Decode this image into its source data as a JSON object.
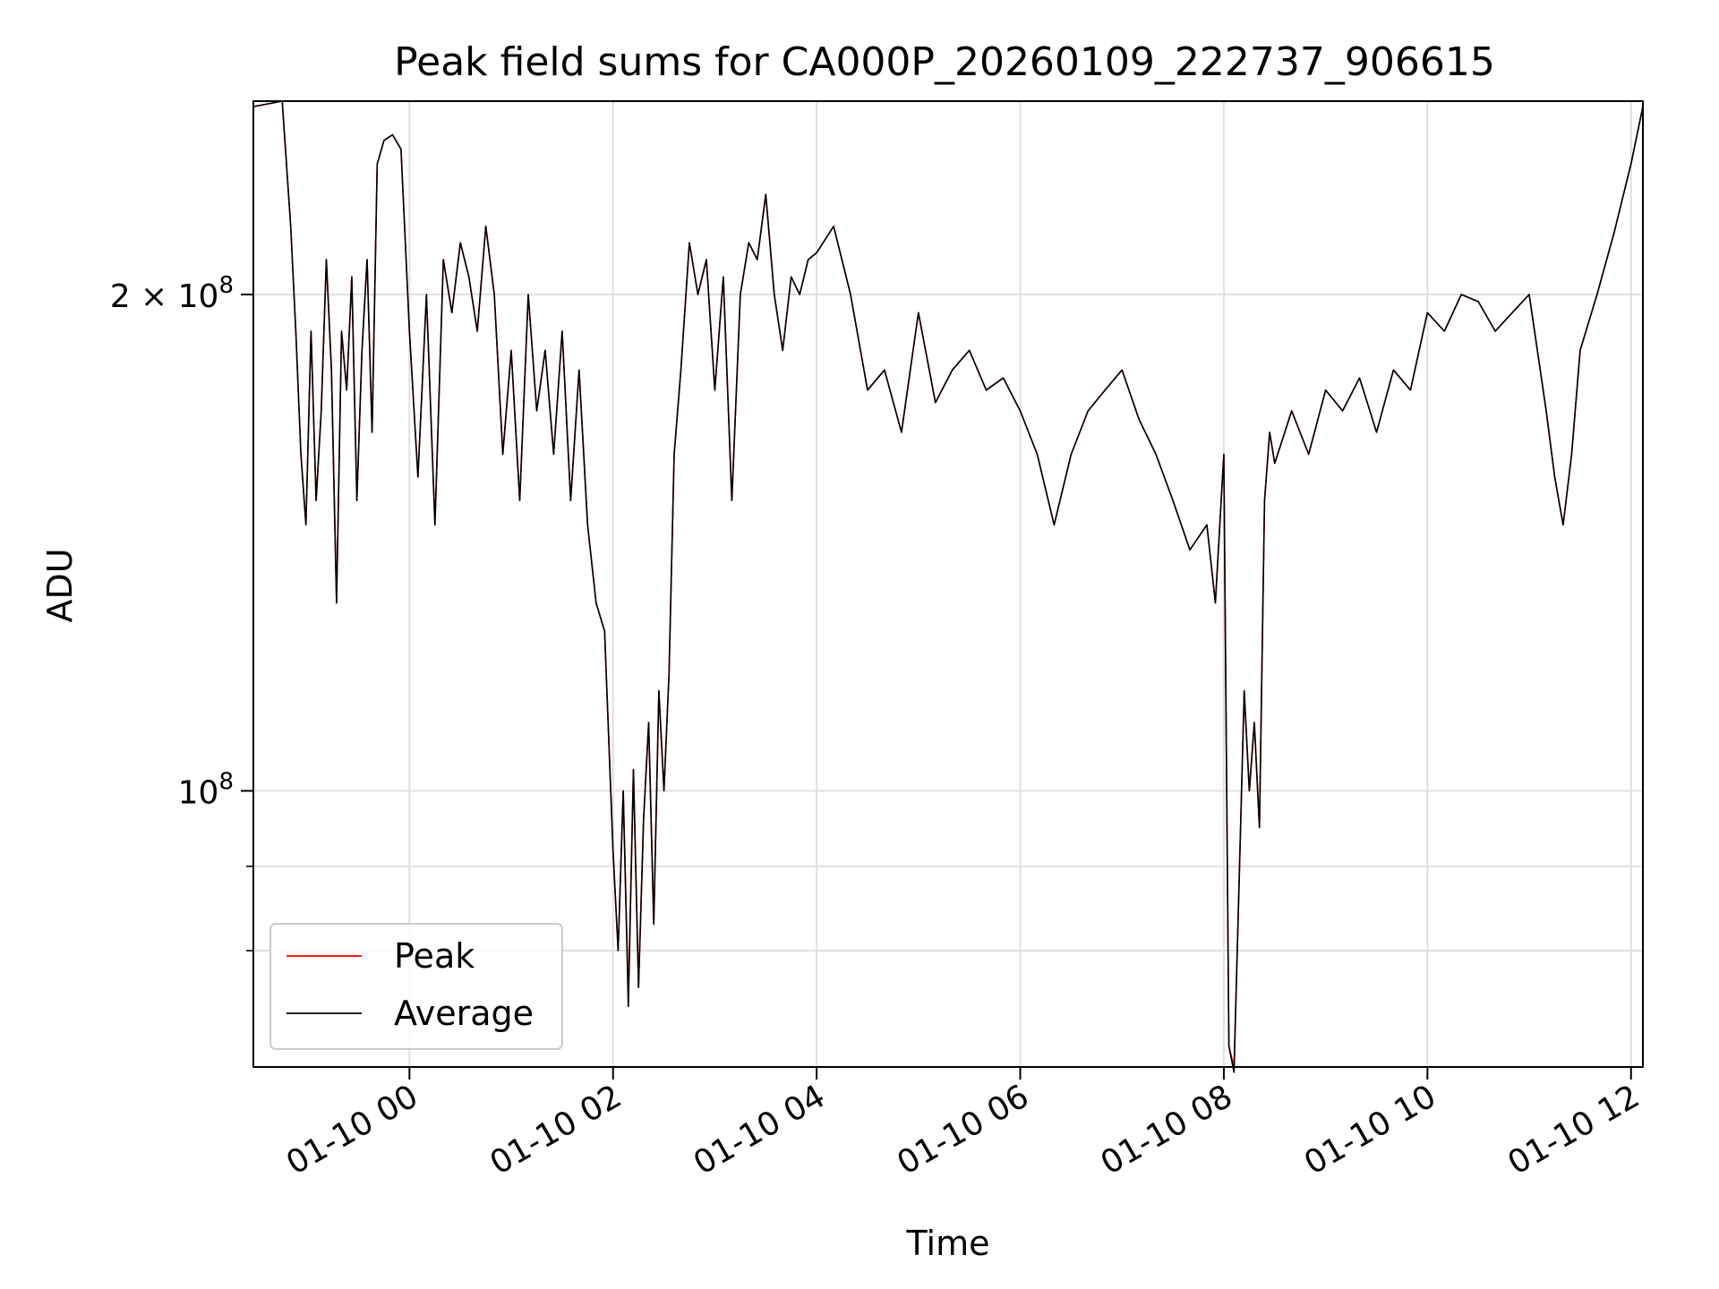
{
  "chart_data": {
    "type": "line",
    "title": "Peak field sums for CA000P_20260109_222737_906615",
    "xlabel": "Time",
    "ylabel": "ADU",
    "y_scale": "log",
    "ylim": [
      68000000,
      262000000
    ],
    "xlim": [
      "2026-01-09 22:28",
      "2026-01-10 12:07"
    ],
    "x_ticks": [
      {
        "t": "2026-01-10 00:00",
        "label": "01-10 00"
      },
      {
        "t": "2026-01-10 02:00",
        "label": "01-10 02"
      },
      {
        "t": "2026-01-10 04:00",
        "label": "01-10 04"
      },
      {
        "t": "2026-01-10 06:00",
        "label": "01-10 06"
      },
      {
        "t": "2026-01-10 08:00",
        "label": "01-10 08"
      },
      {
        "t": "2026-01-10 10:00",
        "label": "01-10 10"
      },
      {
        "t": "2026-01-10 12:00",
        "label": "01-10 12"
      }
    ],
    "y_ticks": [
      {
        "value": 100000000,
        "base": "10",
        "exp": "8",
        "prefix": ""
      },
      {
        "value": 200000000,
        "base": "10",
        "exp": "8",
        "prefix": "2 × "
      }
    ],
    "y_minor_ticks": [
      80000000,
      90000000
    ],
    "grid": true,
    "legend_position": "lower-left",
    "colors": {
      "peak": "#ff0000",
      "average": "#000000"
    },
    "x": [
      "2026-01-09 22:28",
      "2026-01-09 22:45",
      "2026-01-09 22:50",
      "2026-01-09 22:53",
      "2026-01-09 22:56",
      "2026-01-09 22:59",
      "2026-01-09 23:02",
      "2026-01-09 23:05",
      "2026-01-09 23:08",
      "2026-01-09 23:11",
      "2026-01-09 23:14",
      "2026-01-09 23:17",
      "2026-01-09 23:20",
      "2026-01-09 23:23",
      "2026-01-09 23:26",
      "2026-01-09 23:29",
      "2026-01-09 23:32",
      "2026-01-09 23:35",
      "2026-01-09 23:38",
      "2026-01-09 23:41",
      "2026-01-09 23:45",
      "2026-01-09 23:50",
      "2026-01-09 23:55",
      "2026-01-10 00:00",
      "2026-01-10 00:05",
      "2026-01-10 00:10",
      "2026-01-10 00:15",
      "2026-01-10 00:20",
      "2026-01-10 00:25",
      "2026-01-10 00:30",
      "2026-01-10 00:35",
      "2026-01-10 00:40",
      "2026-01-10 00:45",
      "2026-01-10 00:50",
      "2026-01-10 00:55",
      "2026-01-10 01:00",
      "2026-01-10 01:05",
      "2026-01-10 01:10",
      "2026-01-10 01:15",
      "2026-01-10 01:20",
      "2026-01-10 01:25",
      "2026-01-10 01:30",
      "2026-01-10 01:35",
      "2026-01-10 01:40",
      "2026-01-10 01:45",
      "2026-01-10 01:50",
      "2026-01-10 01:55",
      "2026-01-10 02:00",
      "2026-01-10 02:03",
      "2026-01-10 02:06",
      "2026-01-10 02:09",
      "2026-01-10 02:12",
      "2026-01-10 02:15",
      "2026-01-10 02:18",
      "2026-01-10 02:21",
      "2026-01-10 02:24",
      "2026-01-10 02:27",
      "2026-01-10 02:30",
      "2026-01-10 02:33",
      "2026-01-10 02:36",
      "2026-01-10 02:40",
      "2026-01-10 02:45",
      "2026-01-10 02:50",
      "2026-01-10 02:55",
      "2026-01-10 03:00",
      "2026-01-10 03:05",
      "2026-01-10 03:10",
      "2026-01-10 03:15",
      "2026-01-10 03:20",
      "2026-01-10 03:25",
      "2026-01-10 03:30",
      "2026-01-10 03:35",
      "2026-01-10 03:40",
      "2026-01-10 03:45",
      "2026-01-10 03:50",
      "2026-01-10 03:55",
      "2026-01-10 04:00",
      "2026-01-10 04:10",
      "2026-01-10 04:20",
      "2026-01-10 04:30",
      "2026-01-10 04:40",
      "2026-01-10 04:50",
      "2026-01-10 05:00",
      "2026-01-10 05:10",
      "2026-01-10 05:20",
      "2026-01-10 05:30",
      "2026-01-10 05:40",
      "2026-01-10 05:50",
      "2026-01-10 06:00",
      "2026-01-10 06:10",
      "2026-01-10 06:20",
      "2026-01-10 06:30",
      "2026-01-10 06:40",
      "2026-01-10 06:50",
      "2026-01-10 07:00",
      "2026-01-10 07:10",
      "2026-01-10 07:20",
      "2026-01-10 07:30",
      "2026-01-10 07:40",
      "2026-01-10 07:50",
      "2026-01-10 07:55",
      "2026-01-10 08:00",
      "2026-01-10 08:03",
      "2026-01-10 08:06",
      "2026-01-10 08:09",
      "2026-01-10 08:12",
      "2026-01-10 08:15",
      "2026-01-10 08:18",
      "2026-01-10 08:21",
      "2026-01-10 08:24",
      "2026-01-10 08:27",
      "2026-01-10 08:30",
      "2026-01-10 08:40",
      "2026-01-10 08:50",
      "2026-01-10 09:00",
      "2026-01-10 09:10",
      "2026-01-10 09:20",
      "2026-01-10 09:30",
      "2026-01-10 09:40",
      "2026-01-10 09:50",
      "2026-01-10 10:00",
      "2026-01-10 10:10",
      "2026-01-10 10:20",
      "2026-01-10 10:30",
      "2026-01-10 10:40",
      "2026-01-10 10:50",
      "2026-01-10 11:00",
      "2026-01-10 11:10",
      "2026-01-10 11:15",
      "2026-01-10 11:20",
      "2026-01-10 11:25",
      "2026-01-10 11:30",
      "2026-01-10 11:40",
      "2026-01-10 11:50",
      "2026-01-10 12:00",
      "2026-01-10 12:07"
    ],
    "series": [
      {
        "name": "Peak",
        "values": [
          260000000,
          262000000,
          220000000,
          190000000,
          160000000,
          145000000,
          190000000,
          150000000,
          170000000,
          210000000,
          180000000,
          130000000,
          190000000,
          175000000,
          205000000,
          150000000,
          185000000,
          210000000,
          165000000,
          240000000,
          248000000,
          250000000,
          245000000,
          190000000,
          155000000,
          200000000,
          145000000,
          210000000,
          195000000,
          215000000,
          205000000,
          190000000,
          220000000,
          200000000,
          160000000,
          185000000,
          150000000,
          200000000,
          170000000,
          185000000,
          160000000,
          190000000,
          150000000,
          180000000,
          145000000,
          130000000,
          125000000,
          92000000,
          80000000,
          100000000,
          75000000,
          103000000,
          76000000,
          96000000,
          110000000,
          83000000,
          115000000,
          100000000,
          118000000,
          160000000,
          180000000,
          215000000,
          200000000,
          210000000,
          175000000,
          205000000,
          150000000,
          200000000,
          215000000,
          210000000,
          230000000,
          200000000,
          185000000,
          205000000,
          200000000,
          210000000,
          212000000,
          220000000,
          200000000,
          175000000,
          180000000,
          165000000,
          195000000,
          172000000,
          180000000,
          185000000,
          175000000,
          178000000,
          170000000,
          160000000,
          145000000,
          160000000,
          170000000,
          175000000,
          180000000,
          168000000,
          160000000,
          150000000,
          140000000,
          145000000,
          130000000,
          160000000,
          70000000,
          68000000,
          88000000,
          115000000,
          100000000,
          110000000,
          95000000,
          150000000,
          165000000,
          158000000,
          170000000,
          160000000,
          175000000,
          170000000,
          178000000,
          165000000,
          180000000,
          175000000,
          195000000,
          190000000,
          200000000,
          198000000,
          190000000,
          195000000,
          200000000,
          170000000,
          155000000,
          145000000,
          160000000,
          185000000,
          200000000,
          218000000,
          240000000,
          260000000
        ]
      },
      {
        "name": "Average",
        "values": [
          260000000,
          262000000,
          220000000,
          190000000,
          160000000,
          145000000,
          190000000,
          150000000,
          170000000,
          210000000,
          180000000,
          130000000,
          190000000,
          175000000,
          205000000,
          150000000,
          185000000,
          210000000,
          165000000,
          240000000,
          248000000,
          250000000,
          245000000,
          190000000,
          155000000,
          200000000,
          145000000,
          210000000,
          195000000,
          215000000,
          205000000,
          190000000,
          220000000,
          200000000,
          160000000,
          185000000,
          150000000,
          200000000,
          170000000,
          185000000,
          160000000,
          190000000,
          150000000,
          180000000,
          145000000,
          130000000,
          125000000,
          92000000,
          80000000,
          100000000,
          74000000,
          103000000,
          76000000,
          96000000,
          110000000,
          83000000,
          115000000,
          100000000,
          118000000,
          160000000,
          180000000,
          215000000,
          200000000,
          210000000,
          175000000,
          205000000,
          150000000,
          200000000,
          215000000,
          210000000,
          230000000,
          200000000,
          185000000,
          205000000,
          200000000,
          210000000,
          212000000,
          220000000,
          200000000,
          175000000,
          180000000,
          165000000,
          195000000,
          172000000,
          180000000,
          185000000,
          175000000,
          178000000,
          170000000,
          160000000,
          145000000,
          160000000,
          170000000,
          175000000,
          180000000,
          168000000,
          160000000,
          150000000,
          140000000,
          145000000,
          130000000,
          160000000,
          70000000,
          67500000,
          88000000,
          115000000,
          100000000,
          110000000,
          95000000,
          150000000,
          165000000,
          158000000,
          170000000,
          160000000,
          175000000,
          170000000,
          178000000,
          165000000,
          180000000,
          175000000,
          195000000,
          190000000,
          200000000,
          198000000,
          190000000,
          195000000,
          200000000,
          170000000,
          155000000,
          145000000,
          160000000,
          185000000,
          200000000,
          218000000,
          240000000,
          260000000
        ]
      }
    ]
  }
}
